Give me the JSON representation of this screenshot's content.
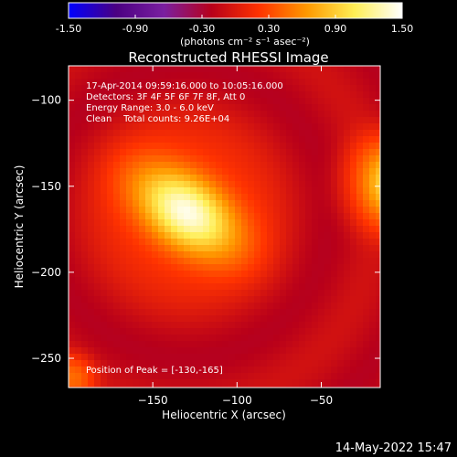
{
  "chart_data": {
    "type": "heatmap",
    "title": "Reconstructed RHESSI Image",
    "colorbar": {
      "ticks": [
        "-1.50",
        "-0.90",
        "-0.30",
        "0.30",
        "0.90",
        "1.50"
      ],
      "range": [
        -1.5,
        1.5
      ],
      "unit_label": "(photons cm⁻² s⁻¹ asec⁻²)",
      "colormap": [
        "#0000ff",
        "#4b0082",
        "#7a1fa0",
        "#b8001a",
        "#ff3300",
        "#ff9900",
        "#ffee55",
        "#ffffff"
      ]
    },
    "xlabel": "Heliocentric X (arcsec)",
    "ylabel": "Heliocentric Y (arcsec)",
    "xlim": [
      -200,
      -15
    ],
    "ylim": [
      -267,
      -80
    ],
    "xticks": [
      -150,
      -100,
      -50
    ],
    "yticks": [
      -100,
      -150,
      -200,
      -250
    ],
    "annotations": {
      "time_range": "17-Apr-2014 09:59:16.000 to 10:05:16.000",
      "detectors": "Detectors: 3F 4F 5F 6F 7F 8F, Att 0",
      "energy": "Energy Range: 3.0 - 6.0 keV",
      "clean": "Clean    Total counts: 9.26E+04",
      "peak": "Position of Peak = [-130,-165]"
    },
    "sources": [
      {
        "x": -130,
        "y": -165,
        "peak": 1.5,
        "sx": 26,
        "sy": 14,
        "angle_deg": -35,
        "halo": 0.85,
        "halo_r": 42
      },
      {
        "x": -8,
        "y": -148,
        "peak": 1.0,
        "sx": 10,
        "sy": 12,
        "angle_deg": 0,
        "halo": 0.8,
        "halo_r": 28
      },
      {
        "x": -198,
        "y": -262,
        "peak": 0.45,
        "sx": 8,
        "sy": 8,
        "angle_deg": 0,
        "halo": 0.4,
        "halo_r": 14
      }
    ],
    "background": -0.15,
    "grid": false
  },
  "footer": {
    "date_stamp": "14-May-2022 15:47"
  }
}
